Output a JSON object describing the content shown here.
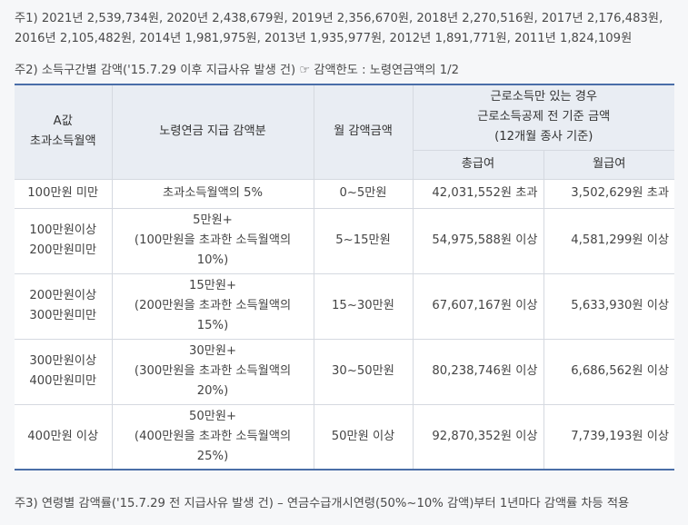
{
  "notes": {
    "note1_line1": "주1) 2021년 2,539,734원, 2020년 2,438,679원, 2019년 2,356,670원, 2018년 2,270,516원, 2017년 2,176,483원,",
    "note1_line2": "2016년 2,105,482원, 2014년 1,981,975원, 2013년 1,935,977원, 2012년 1,891,771원, 2011년 1,824,109원",
    "note2": "주2) 소득구간별 감액('15.7.29 이후 지급사유 발생 건) ☞ 감액한도 : 노령연금액의 1/2",
    "note3": "주3) 연령별 감액률('15.7.29 전 지급사유 발생 건) – 연금수급개시연령(50%~10% 감액)부터 1년마다 감액률 차등 적용"
  },
  "table": {
    "headers": {
      "col1_line1": "A값",
      "col1_line2": "초과소득월액",
      "col2": "노령연금 지급 감액분",
      "col3": "월 감액금액",
      "col4_line1": "근로소득만 있는 경우",
      "col4_line2": "근로소득공제 전 기준 금액",
      "col4_line3": "(12개월 종사 기준)",
      "sub1": "총급여",
      "sub2": "월급여"
    },
    "rows": [
      {
        "range": [
          "100만원 미만"
        ],
        "deduction": [
          "초과소득월액의 5%"
        ],
        "monthly": "0~5만원",
        "total": "42,031,552원 초과",
        "month_pay": "3,502,629원 초과"
      },
      {
        "range": [
          "100만원이상",
          "200만원미만"
        ],
        "deduction": [
          "5만원+",
          "(100만원을 초과한 소득월액의",
          "10%)"
        ],
        "monthly": "5~15만원",
        "total": "54,975,588원 이상",
        "month_pay": "4,581,299원 이상"
      },
      {
        "range": [
          "200만원이상",
          "300만원미만"
        ],
        "deduction": [
          "15만원+",
          "(200만원을 초과한 소득월액의",
          "15%)"
        ],
        "monthly": "15~30만원",
        "total": "67,607,167원 이상",
        "month_pay": "5,633,930원 이상"
      },
      {
        "range": [
          "300만원이상",
          "400만원미만"
        ],
        "deduction": [
          "30만원+",
          "(300만원을 초과한 소득월액의",
          "20%)"
        ],
        "monthly": "30~50만원",
        "total": "80,238,746원 이상",
        "month_pay": "6,686,562원 이상"
      },
      {
        "range": [
          "400만원 이상"
        ],
        "deduction": [
          "50만원+",
          "(400만원을 초과한 소득월액의",
          "25%)"
        ],
        "monthly": "50만원 이상",
        "total": "92,870,352원 이상",
        "month_pay": "7,739,193원 이상"
      }
    ]
  },
  "colors": {
    "accent_border": "#4a6ea8",
    "header_bg": "#e9edf3",
    "page_bg": "#f6f7f9"
  }
}
